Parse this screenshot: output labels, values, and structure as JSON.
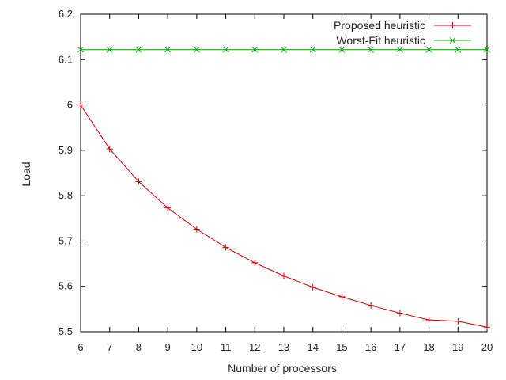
{
  "chart_data": {
    "type": "line",
    "title": "",
    "xlabel": "Number of processors",
    "ylabel": "Load",
    "xlim": [
      6,
      20
    ],
    "ylim": [
      5.5,
      6.2
    ],
    "x_ticks": [
      "6",
      "7",
      "8",
      "9",
      "10",
      "11",
      "12",
      "13",
      "14",
      "15",
      "16",
      "17",
      "18",
      "19",
      "20"
    ],
    "y_ticks": [
      "5.5",
      "5.6",
      "5.7",
      "5.8",
      "5.9",
      "6",
      "6.1",
      "6.2"
    ],
    "grid": false,
    "legend_position": "top-right",
    "x": [
      6,
      7,
      8,
      9,
      10,
      11,
      12,
      13,
      14,
      15,
      16,
      17,
      18,
      19,
      20
    ],
    "series": [
      {
        "name": "Proposed heuristic",
        "color": "#cc0000",
        "marker": "plus",
        "values": [
          6.0,
          5.903,
          5.831,
          5.773,
          5.726,
          5.686,
          5.652,
          5.623,
          5.598,
          5.577,
          5.558,
          5.541,
          5.526,
          5.523,
          5.51
        ]
      },
      {
        "name": "Worst-Fit heuristic",
        "color": "#00a000",
        "marker": "cross",
        "values": [
          6.122,
          6.122,
          6.122,
          6.122,
          6.122,
          6.122,
          6.122,
          6.122,
          6.122,
          6.122,
          6.122,
          6.122,
          6.122,
          6.122,
          6.122
        ]
      }
    ]
  }
}
